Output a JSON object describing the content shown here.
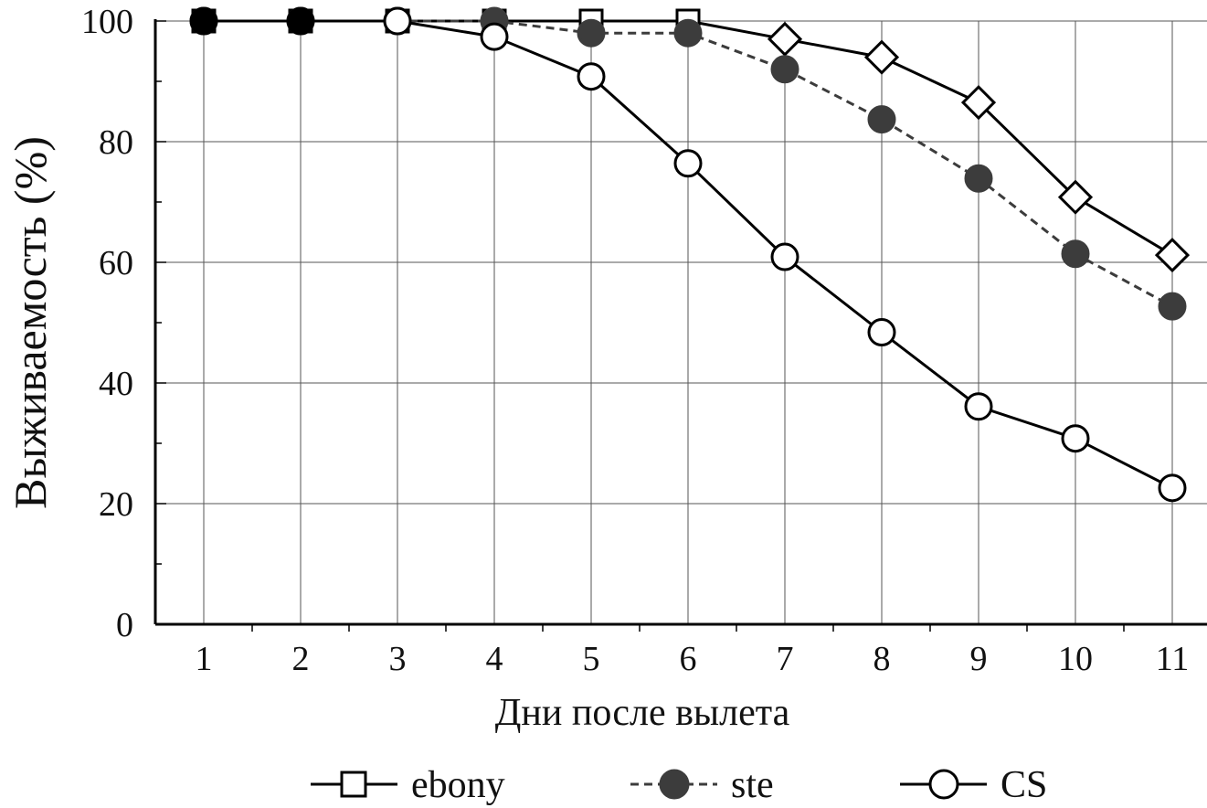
{
  "chart_data": {
    "type": "line",
    "title": "",
    "xlabel": "Дни после вылета",
    "ylabel": "Выживаемость (%)",
    "x": [
      1,
      2,
      3,
      4,
      5,
      6,
      7,
      8,
      9,
      10,
      11
    ],
    "x_tick_labels": [
      "1",
      "2",
      "3",
      "4",
      "5",
      "6",
      "7",
      "8",
      "9",
      "10",
      "11"
    ],
    "y_ticks": [
      0,
      20,
      40,
      60,
      80,
      100
    ],
    "y_tick_labels": [
      "0",
      "20",
      "40",
      "60",
      "80",
      "100"
    ],
    "ylim": [
      0,
      100
    ],
    "grid": true,
    "legend_position": "bottom",
    "series": [
      {
        "name": "ebony",
        "marker": "square",
        "line": "solid",
        "fill": "#ffffff",
        "stroke": "#000000",
        "values": [
          100,
          100,
          100,
          100,
          100,
          100,
          97,
          94,
          86.5,
          70.8,
          61.2
        ]
      },
      {
        "name": "ste",
        "marker": "circle",
        "line": "dashed",
        "fill": "#3c3c3c",
        "stroke": "#3c3c3c",
        "values": [
          100,
          100,
          100,
          100,
          98,
          98,
          92,
          83.7,
          73.9,
          61.4,
          52.7
        ]
      },
      {
        "name": "CS",
        "marker": "circle",
        "line": "solid",
        "fill": "#ffffff",
        "stroke": "#000000",
        "values": [
          100,
          100,
          100,
          97.4,
          90.8,
          76.4,
          60.9,
          48.4,
          36.1,
          30.8,
          22.6
        ]
      }
    ]
  }
}
